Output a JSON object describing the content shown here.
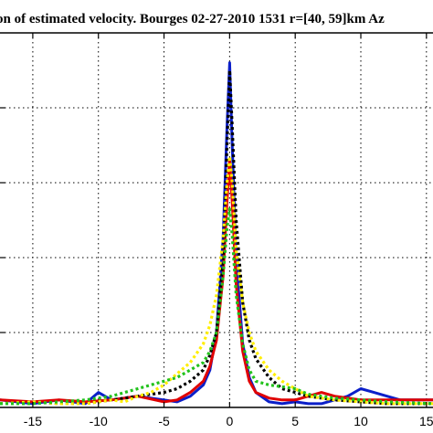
{
  "chart_data": {
    "type": "line",
    "title": "on of estimated velocity. Bourges  02-27-2010 1531 r=[40, 59]km Az",
    "xlabel": "",
    "ylabel": "",
    "xlim": [
      -17.5,
      15.5
    ],
    "ylim": [
      0,
      1.0
    ],
    "x_ticks": [
      -15,
      -10,
      -5,
      0,
      5,
      10,
      15
    ],
    "x_tick_labels": [
      "-15",
      "-10",
      "-5",
      "0",
      "5",
      "10",
      "15"
    ],
    "grid": true,
    "grid_style": "dotted",
    "series": [
      {
        "color": "#0b1fc9",
        "style": "solid",
        "x": [
          -17.5,
          -15,
          -13,
          -11,
          -10,
          -9,
          -7,
          -5,
          -4,
          -3,
          -2,
          -1.5,
          -1,
          -0.5,
          -0.2,
          0,
          0.2,
          0.5,
          1,
          1.5,
          2,
          3,
          4,
          5,
          6,
          7,
          8,
          9,
          10,
          11,
          12,
          13,
          15,
          15.5
        ],
        "y": [
          0.02,
          0.01,
          0.02,
          0.01,
          0.04,
          0.02,
          0.03,
          0.02,
          0.015,
          0.03,
          0.06,
          0.1,
          0.2,
          0.45,
          0.75,
          0.92,
          0.7,
          0.4,
          0.17,
          0.08,
          0.04,
          0.015,
          0.01,
          0.015,
          0.01,
          0.01,
          0.02,
          0.03,
          0.05,
          0.04,
          0.03,
          0.02,
          0.02,
          0.02
        ]
      },
      {
        "color": "#e00000",
        "style": "solid",
        "x": [
          -17.5,
          -15,
          -13,
          -11,
          -9,
          -7,
          -5,
          -4,
          -3,
          -2,
          -1.5,
          -1,
          -0.5,
          -0.2,
          0,
          0.2,
          0.5,
          1,
          1.5,
          2,
          3,
          4,
          5,
          6,
          7,
          8,
          10,
          12,
          15.5
        ],
        "y": [
          0.02,
          0.015,
          0.02,
          0.015,
          0.02,
          0.03,
          0.015,
          0.02,
          0.04,
          0.07,
          0.11,
          0.18,
          0.35,
          0.55,
          0.66,
          0.55,
          0.33,
          0.15,
          0.07,
          0.04,
          0.025,
          0.02,
          0.02,
          0.03,
          0.04,
          0.03,
          0.02,
          0.02,
          0.02
        ]
      },
      {
        "color": "#000000",
        "style": "dotted",
        "x": [
          -17.5,
          -15,
          -13,
          -11,
          -9,
          -7,
          -5,
          -4,
          -3,
          -2,
          -1.5,
          -1,
          -0.5,
          -0.2,
          0,
          0.2,
          0.5,
          1,
          1.5,
          2,
          3,
          4,
          5,
          6,
          7,
          8,
          10,
          12,
          15.5
        ],
        "y": [
          0.01,
          0.015,
          0.01,
          0.01,
          0.02,
          0.03,
          0.04,
          0.05,
          0.07,
          0.1,
          0.14,
          0.2,
          0.4,
          0.7,
          0.9,
          0.75,
          0.5,
          0.28,
          0.18,
          0.13,
          0.08,
          0.05,
          0.04,
          0.03,
          0.025,
          0.02,
          0.015,
          0.01,
          0.01
        ]
      },
      {
        "color": "#ffee00",
        "style": "dotted",
        "x": [
          -17.5,
          -15,
          -13,
          -11,
          -9,
          -8,
          -7,
          -6,
          -5,
          -4,
          -3,
          -2,
          -1.5,
          -1,
          -0.5,
          -0.2,
          0,
          0.2,
          0.5,
          1,
          1.5,
          2,
          3,
          4,
          5,
          6,
          7,
          8,
          10,
          12,
          15.5
        ],
        "y": [
          0.01,
          0.015,
          0.01,
          0.01,
          0.02,
          0.015,
          0.03,
          0.04,
          0.06,
          0.09,
          0.12,
          0.17,
          0.22,
          0.3,
          0.45,
          0.6,
          0.67,
          0.6,
          0.42,
          0.28,
          0.2,
          0.15,
          0.1,
          0.07,
          0.05,
          0.03,
          0.025,
          0.02,
          0.015,
          0.01,
          0.01
        ]
      },
      {
        "color": "#22c21c",
        "style": "dotted",
        "x": [
          -17.5,
          -15,
          -13,
          -11,
          -9,
          -8,
          -7,
          -6,
          -5,
          -4,
          -3,
          -2,
          -1.5,
          -1,
          -0.5,
          -0.2,
          0,
          0.2,
          0.5,
          1,
          1.5,
          2,
          3,
          4,
          5,
          6,
          7,
          8,
          10,
          12,
          15.5
        ],
        "y": [
          0.01,
          0.01,
          0.015,
          0.02,
          0.03,
          0.04,
          0.05,
          0.06,
          0.07,
          0.08,
          0.1,
          0.12,
          0.15,
          0.2,
          0.35,
          0.48,
          0.53,
          0.46,
          0.3,
          0.17,
          0.1,
          0.07,
          0.06,
          0.055,
          0.05,
          0.035,
          0.03,
          0.025,
          0.02,
          0.015,
          0.01
        ]
      }
    ]
  }
}
